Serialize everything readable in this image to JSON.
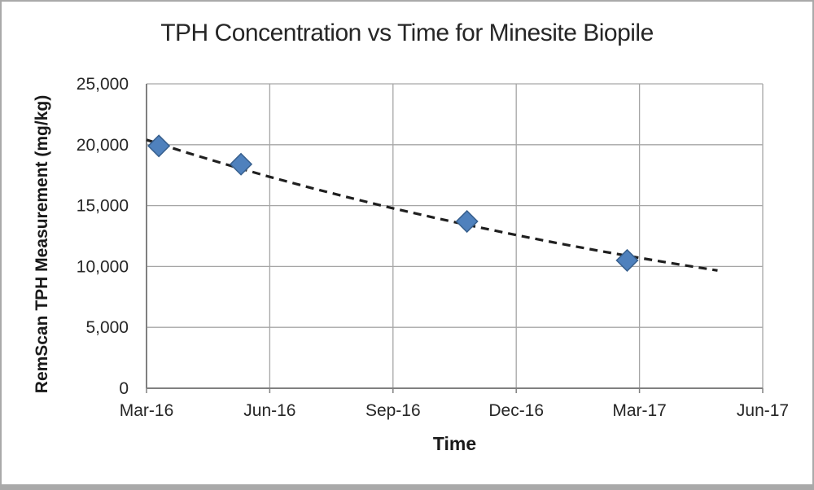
{
  "window": {
    "background": "#ffffff",
    "border_color": "#a9a9a9"
  },
  "styles": {
    "gridline_color": "#a6a6a6",
    "axis_line_color": "#808080",
    "tick_text_color": "#262626",
    "title_color": "#262626",
    "marker_fill": "#4f81bd",
    "marker_edge": "#38608e",
    "trendline_color": "#1f1f1f"
  },
  "chart_data": {
    "type": "scatter",
    "title": "TPH Concentration vs Time for Minesite Biopile",
    "xlabel": "Time",
    "ylabel": "RemScan TPH Measurement (mg/kg)",
    "grid": true,
    "legend": "none",
    "x_axis": {
      "tick_labels": [
        "Mar-16",
        "Jun-16",
        "Sep-16",
        "Dec-16",
        "Mar-17",
        "Jun-17"
      ],
      "tick_months": [
        0,
        3,
        6,
        9,
        12,
        15
      ],
      "lim_months": [
        0,
        15
      ]
    },
    "y_axis": {
      "ticks": [
        0,
        5000,
        10000,
        15000,
        20000,
        25000
      ],
      "tick_labels": [
        "0",
        "5,000",
        "10,000",
        "15,000",
        "20,000",
        "25,000"
      ],
      "lim": [
        0,
        25000
      ]
    },
    "series": [
      {
        "marker": "diamond",
        "marker_color": "#4f81bd",
        "marker_edge_color": "#38608e",
        "points": [
          {
            "x_months": 0.3,
            "tph_mg_kg": 19900
          },
          {
            "x_months": 2.3,
            "tph_mg_kg": 18400
          },
          {
            "x_months": 7.8,
            "tph_mg_kg": 13700
          },
          {
            "x_months": 11.7,
            "tph_mg_kg": 10500
          }
        ]
      }
    ],
    "trendline": {
      "style": "dashed",
      "shape": "exponential-decay",
      "color": "#1f1f1f",
      "points_months_value": [
        [
          0,
          20400
        ],
        [
          1,
          19330
        ],
        [
          2,
          18320
        ],
        [
          3,
          17360
        ],
        [
          4,
          16460
        ],
        [
          5,
          15600
        ],
        [
          6,
          14780
        ],
        [
          7,
          14010
        ],
        [
          8,
          13280
        ],
        [
          9,
          12580
        ],
        [
          10,
          11920
        ],
        [
          11,
          11300
        ],
        [
          12,
          10710
        ],
        [
          13,
          10150
        ],
        [
          13.9,
          9670
        ]
      ]
    }
  }
}
